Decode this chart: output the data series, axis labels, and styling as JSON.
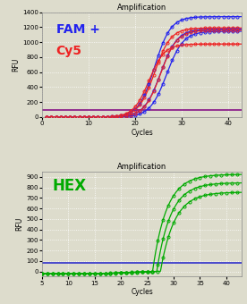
{
  "bg_color": "#dddccc",
  "panel1": {
    "title": "Amplification",
    "ylabel": "RFU",
    "xlabel": "Cycles",
    "ylim": [
      0,
      1400
    ],
    "xlim": [
      0,
      43
    ],
    "yticks": [
      0,
      200,
      400,
      600,
      800,
      1000,
      1200,
      1400
    ],
    "xticks": [
      0,
      10,
      20,
      30,
      40
    ],
    "label_fam": "FAM +",
    "label_cy5": "Cy5",
    "fam_color": "#2222ee",
    "cy5_color": "#ee2222",
    "threshold_color": "#800080",
    "threshold_y": 100,
    "fam_curves": [
      {
        "plateau": 1340,
        "midpoint": 24.2,
        "k": 0.58
      },
      {
        "plateau": 1175,
        "midpoint": 25.5,
        "k": 0.56
      },
      {
        "plateau": 1145,
        "midpoint": 26.8,
        "k": 0.56
      }
    ],
    "cy5_curves": [
      {
        "plateau": 975,
        "midpoint": 23.0,
        "k": 0.6
      },
      {
        "plateau": 1190,
        "midpoint": 24.2,
        "k": 0.58
      },
      {
        "plateau": 1160,
        "midpoint": 25.5,
        "k": 0.57
      }
    ]
  },
  "panel2": {
    "title": "Amplification",
    "ylabel": "RFU",
    "xlabel": "Cycles",
    "ylim": [
      -50,
      950
    ],
    "xlim": [
      5,
      43
    ],
    "yticks": [
      0,
      100,
      200,
      300,
      400,
      500,
      600,
      700,
      800,
      900
    ],
    "xticks": [
      5,
      10,
      15,
      20,
      25,
      30,
      35,
      40
    ],
    "label_hex": "HEX",
    "hex_color": "#00aa00",
    "threshold_color": "#2222cc",
    "threshold_y": 80,
    "hex_curves": [
      {
        "a": 0.0006,
        "b": 0.008,
        "c": -20,
        "x0": 26,
        "plateau": 925
      },
      {
        "a": 0.0006,
        "b": 0.008,
        "c": -20,
        "x0": 26.8,
        "plateau": 845
      },
      {
        "a": 0.0006,
        "b": 0.008,
        "c": -20,
        "x0": 27.5,
        "plateau": 755
      }
    ]
  }
}
